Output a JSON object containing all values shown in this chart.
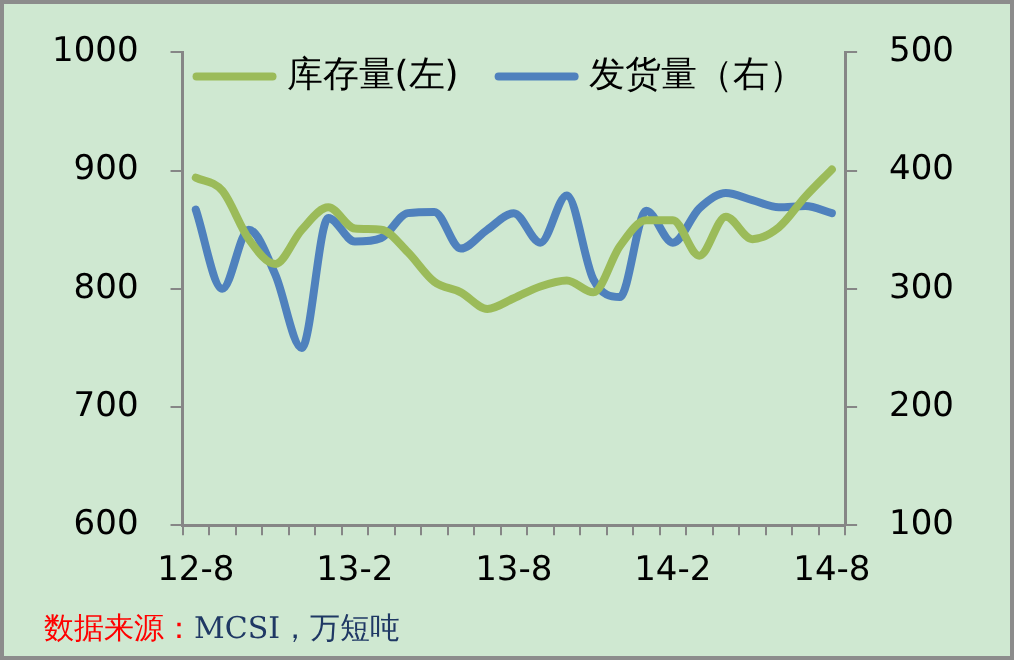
{
  "chart_data": {
    "type": "line",
    "categories": [
      "12-8",
      null,
      null,
      null,
      null,
      null,
      "13-2",
      null,
      null,
      null,
      null,
      null,
      "13-8",
      null,
      null,
      null,
      null,
      null,
      "14-2",
      null,
      null,
      null,
      null,
      null,
      "14-8"
    ],
    "series": [
      {
        "name": "库存量(左)",
        "color": "#9bbb59",
        "values": [
          894,
          883,
          842,
          821,
          850,
          869,
          851,
          850,
          831,
          806,
          797,
          783,
          792,
          802,
          807,
          797,
          836,
          858,
          858,
          828,
          861,
          842,
          852,
          878,
          901
        ]
      },
      {
        "name": "发货量（右）",
        "color": "#4f81bd",
        "axis": "y2",
        "values": [
          367,
          300,
          350,
          312,
          250,
          360,
          340,
          343,
          364,
          365,
          334,
          350,
          364,
          339,
          379,
          308,
          293,
          366,
          339,
          368,
          381,
          375,
          369,
          370,
          364
        ]
      }
    ],
    "ylim": [
      600,
      1000
    ],
    "yticks": [
      600,
      700,
      800,
      900,
      1000
    ],
    "y2lim": [
      100,
      500
    ],
    "y2ticks": [
      100,
      200,
      300,
      400,
      500
    ],
    "grid": false,
    "legend": "top left",
    "marker": "none",
    "line_style": "solid",
    "annotations": [
      "数据来源：MCSI，万短吨"
    ]
  }
}
